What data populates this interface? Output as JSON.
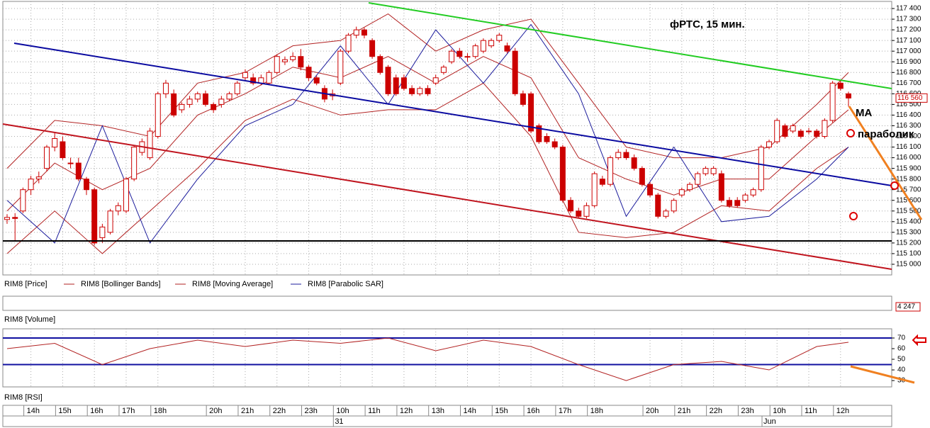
{
  "chart_data": {
    "type": "candlestick",
    "title": "фРТС, 15 мин.",
    "annotations": [
      "MA",
      "параболик"
    ],
    "ylim": [
      114900,
      117480
    ],
    "yticks": [
      {
        "value": 115000,
        "label": "115 000"
      },
      {
        "value": 115100,
        "label": "115 100"
      },
      {
        "value": 115200,
        "label": "115 200"
      },
      {
        "value": 115300,
        "label": "115 300"
      },
      {
        "value": 115400,
        "label": "115 400"
      },
      {
        "value": 115500,
        "label": "115 500"
      },
      {
        "value": 115600,
        "label": "115 600"
      },
      {
        "value": 115700,
        "label": "115 700"
      },
      {
        "value": 115800,
        "label": "115 800"
      },
      {
        "value": 115900,
        "label": "115 900"
      },
      {
        "value": 116000,
        "label": "116 000"
      },
      {
        "value": 116100,
        "label": "116 100"
      },
      {
        "value": 116200,
        "label": "116 200"
      },
      {
        "value": 116300,
        "label": "116 300"
      },
      {
        "value": 116400,
        "label": "116 400"
      },
      {
        "value": 116500,
        "label": "116 500"
      },
      {
        "value": 116600,
        "label": "116 600"
      },
      {
        "value": 116700,
        "label": "116 700"
      },
      {
        "value": 116800,
        "label": "116 800"
      },
      {
        "value": 116900,
        "label": "116 900"
      },
      {
        "value": 117000,
        "label": "117 000"
      },
      {
        "value": 117100,
        "label": "117 100"
      },
      {
        "value": 117200,
        "label": "117 200"
      },
      {
        "value": 117300,
        "label": "117 300"
      },
      {
        "value": 117400,
        "label": "117 400"
      }
    ],
    "last_price": {
      "value": 116560,
      "label": "116 560"
    },
    "grid": true,
    "price": {
      "name": "RIM8 [Price]",
      "color": "#cc0000",
      "ohlc": [
        [
          115420,
          115470,
          115380,
          115440
        ],
        [
          115440,
          115480,
          115220,
          115430
        ],
        [
          115500,
          115720,
          115480,
          115700
        ],
        [
          115700,
          115830,
          115650,
          115800
        ],
        [
          115800,
          115870,
          115760,
          115820
        ],
        [
          115900,
          116120,
          115870,
          116100
        ],
        [
          116100,
          116230,
          116060,
          116180
        ],
        [
          116150,
          116200,
          115980,
          116000
        ],
        [
          115950,
          116000,
          115900,
          115950
        ],
        [
          115950,
          116000,
          115780,
          115800
        ],
        [
          115800,
          115820,
          115650,
          115700
        ],
        [
          115700,
          115720,
          115180,
          115200
        ],
        [
          115250,
          115380,
          115200,
          115350
        ],
        [
          115300,
          115520,
          115280,
          115500
        ],
        [
          115500,
          115580,
          115460,
          115550
        ],
        [
          115500,
          115820,
          115480,
          115800
        ],
        [
          115800,
          116120,
          115780,
          116100
        ],
        [
          116050,
          116180,
          116020,
          116150
        ],
        [
          116000,
          116280,
          115980,
          116250
        ],
        [
          116200,
          116620,
          116180,
          116600
        ],
        [
          116600,
          116730,
          116560,
          116700
        ],
        [
          116600,
          116640,
          116380,
          116400
        ],
        [
          116450,
          116520,
          116420,
          116500
        ],
        [
          116500,
          116580,
          116470,
          116550
        ],
        [
          116550,
          116620,
          116520,
          116600
        ],
        [
          116600,
          116630,
          116480,
          116500
        ],
        [
          116500,
          116520,
          116420,
          116450
        ],
        [
          116500,
          116580,
          116470,
          116550
        ],
        [
          116550,
          116620,
          116530,
          116600
        ],
        [
          116600,
          116720,
          116580,
          116700
        ],
        [
          116750,
          116830,
          116720,
          116800
        ],
        [
          116750,
          116790,
          116680,
          116700
        ],
        [
          116700,
          116780,
          116680,
          116750
        ],
        [
          116700,
          116820,
          116680,
          116800
        ],
        [
          116800,
          116970,
          116780,
          116950
        ],
        [
          116900,
          116950,
          116870,
          116920
        ],
        [
          116920,
          116990,
          116900,
          116950
        ],
        [
          116950,
          117020,
          116820,
          116850
        ],
        [
          116850,
          116870,
          116720,
          116750
        ],
        [
          116750,
          116770,
          116680,
          116700
        ],
        [
          116650,
          116680,
          116520,
          116550
        ],
        [
          116580,
          116640,
          116540,
          116600
        ],
        [
          116700,
          117020,
          116680,
          117000
        ],
        [
          117000,
          117170,
          116980,
          117150
        ],
        [
          117150,
          117230,
          117120,
          117200
        ],
        [
          117200,
          117220,
          117120,
          117150
        ],
        [
          117100,
          117120,
          116930,
          116950
        ],
        [
          116950,
          116970,
          116780,
          116800
        ],
        [
          116850,
          116870,
          116580,
          116600
        ],
        [
          116750,
          116780,
          116580,
          116600
        ],
        [
          116750,
          116780,
          116630,
          116650
        ],
        [
          116650,
          116680,
          116580,
          116600
        ],
        [
          116600,
          116670,
          116580,
          116650
        ],
        [
          116650,
          116680,
          116580,
          116600
        ],
        [
          116700,
          116780,
          116680,
          116750
        ],
        [
          116800,
          116870,
          116780,
          116850
        ],
        [
          116900,
          117020,
          116880,
          117000
        ],
        [
          117000,
          117030,
          116930,
          116950
        ],
        [
          116950,
          116980,
          116900,
          116950
        ],
        [
          116950,
          117070,
          116930,
          117050
        ],
        [
          117000,
          117120,
          116980,
          117100
        ],
        [
          117050,
          117120,
          117030,
          117100
        ],
        [
          117100,
          117170,
          117080,
          117150
        ],
        [
          117050,
          117080,
          116980,
          117000
        ],
        [
          117000,
          117030,
          116580,
          116600
        ],
        [
          116600,
          116630,
          116480,
          116500
        ],
        [
          116600,
          116620,
          116230,
          116250
        ],
        [
          116300,
          116320,
          116130,
          116150
        ],
        [
          116200,
          116230,
          116130,
          116150
        ],
        [
          116150,
          116180,
          116080,
          116100
        ],
        [
          116100,
          116120,
          115580,
          115600
        ],
        [
          115600,
          115630,
          115480,
          115500
        ],
        [
          115500,
          115530,
          115430,
          115450
        ],
        [
          115450,
          115580,
          115430,
          115550
        ],
        [
          115550,
          115870,
          115530,
          115850
        ],
        [
          115800,
          115830,
          115730,
          115750
        ],
        [
          115750,
          116020,
          115730,
          116000
        ],
        [
          116000,
          116080,
          115980,
          116050
        ],
        [
          116050,
          116080,
          115980,
          116000
        ],
        [
          116000,
          116030,
          115880,
          115900
        ],
        [
          115900,
          115920,
          115730,
          115750
        ],
        [
          115750,
          115770,
          115630,
          115650
        ],
        [
          115650,
          115670,
          115430,
          115450
        ],
        [
          115450,
          115520,
          115430,
          115500
        ],
        [
          115500,
          115620,
          115480,
          115600
        ],
        [
          115650,
          115720,
          115630,
          115700
        ],
        [
          115700,
          115770,
          115680,
          115750
        ],
        [
          115750,
          115870,
          115730,
          115850
        ],
        [
          115850,
          115920,
          115830,
          115900
        ],
        [
          115850,
          115920,
          115830,
          115900
        ],
        [
          115850,
          115880,
          115580,
          115600
        ],
        [
          115600,
          115630,
          115530,
          115550
        ],
        [
          115600,
          115630,
          115530,
          115550
        ],
        [
          115600,
          115670,
          115580,
          115650
        ],
        [
          115650,
          115720,
          115630,
          115700
        ],
        [
          115700,
          116120,
          115680,
          116100
        ],
        [
          116100,
          116170,
          116080,
          116150
        ],
        [
          116150,
          116370,
          116130,
          116350
        ],
        [
          116300,
          116320,
          116180,
          116200
        ],
        [
          116250,
          116320,
          116230,
          116300
        ],
        [
          116250,
          116270,
          116180,
          116200
        ],
        [
          116250,
          116280,
          116220,
          116250
        ],
        [
          116250,
          116270,
          116180,
          116200
        ],
        [
          116200,
          116370,
          116180,
          116350
        ],
        [
          116350,
          116720,
          116330,
          116700
        ],
        [
          116700,
          116730,
          116630,
          116650
        ],
        [
          116600,
          116620,
          116480,
          116560
        ]
      ]
    },
    "indicator_x": [
      0,
      6,
      12,
      18,
      24,
      30,
      36,
      42,
      48,
      54,
      60,
      66,
      72,
      78,
      84,
      90,
      96,
      102,
      106
    ],
    "bands": {
      "name": "RIM8 [Bollinger Bands]",
      "color": "#b22222",
      "upper": [
        115900,
        116350,
        116300,
        116200,
        116700,
        116800,
        117050,
        117100,
        117350,
        117000,
        117200,
        117300,
        116700,
        116100,
        116000,
        116000,
        116100,
        116500,
        116800
      ],
      "lower": [
        115100,
        115500,
        115100,
        115500,
        115900,
        116350,
        116550,
        116400,
        116450,
        116450,
        116700,
        116200,
        115300,
        115250,
        115300,
        115550,
        115500,
        115900,
        116100
      ]
    },
    "ma": {
      "name": "RIM8 [Moving Average]",
      "color": "#b22222",
      "values": [
        115500,
        115950,
        115700,
        115900,
        116400,
        116600,
        116850,
        116750,
        116950,
        116700,
        116950,
        116750,
        116000,
        115800,
        115650,
        115800,
        115800,
        116200,
        116450
      ]
    },
    "sar": {
      "name": "RIM8 [Parabolic SAR]",
      "color": "#1c1c9c",
      "values": [
        115600,
        115200,
        116300,
        115200,
        115800,
        116300,
        116500,
        117050,
        116500,
        117200,
        116700,
        117250,
        116600,
        115450,
        116100,
        115400,
        115450,
        115800,
        116100
      ]
    },
    "volume": {
      "name": "RIM8 [Volume]",
      "last": {
        "value": 4247,
        "label": "4 247"
      }
    },
    "rsi": {
      "name": "RIM8 [RSI]",
      "ylim": [
        24.7,
        80
      ],
      "yticks": [
        70,
        60,
        50,
        40,
        30
      ],
      "levels": [
        70,
        45
      ],
      "values": [
        60,
        65,
        45,
        60,
        68,
        62,
        68,
        65,
        70,
        58,
        68,
        62,
        45,
        30,
        45,
        48,
        40,
        62,
        66
      ]
    },
    "categories": [
      null,
      null,
      null,
      "14h",
      null,
      null,
      null,
      "15h",
      null,
      null,
      null,
      "16h",
      null,
      null,
      null,
      "17h",
      null,
      null,
      null,
      "18h",
      null,
      null,
      null,
      null,
      null,
      null,
      "20h",
      null,
      null,
      null,
      "21h",
      null,
      null,
      null,
      "22h",
      null,
      null,
      null,
      "23h",
      null,
      null,
      null,
      "10h",
      null,
      null,
      null,
      "11h",
      null,
      null,
      null,
      "12h",
      null,
      null,
      null,
      "13h",
      null,
      null,
      null,
      "14h",
      null,
      null,
      null,
      "15h",
      null,
      null,
      null,
      "16h",
      null,
      null,
      null,
      "17h",
      null,
      null,
      null,
      "18h",
      null,
      null,
      null,
      null,
      null,
      null,
      "20h",
      null,
      null,
      null,
      "21h",
      null,
      null,
      null,
      "22h",
      null,
      null,
      null,
      "23h",
      null,
      null,
      null,
      "10h",
      null,
      null,
      null,
      "11h",
      null,
      null,
      null,
      "12h",
      null,
      null
    ],
    "dates": [
      null,
      null,
      null,
      null,
      null,
      null,
      null,
      null,
      null,
      null,
      null,
      null,
      null,
      null,
      null,
      null,
      null,
      null,
      null,
      null,
      null,
      null,
      null,
      null,
      null,
      null,
      null,
      null,
      null,
      null,
      null,
      null,
      null,
      null,
      null,
      null,
      null,
      null,
      null,
      null,
      null,
      null,
      "31",
      null,
      null,
      null,
      null,
      null,
      null,
      null,
      null,
      null,
      null,
      null,
      null,
      null,
      null,
      null,
      null,
      null,
      null,
      null,
      null,
      null,
      null,
      null,
      null,
      null,
      null,
      null,
      null,
      null,
      null,
      null,
      null,
      null,
      null,
      null,
      null,
      null,
      null,
      null,
      null,
      null,
      null,
      null,
      null,
      null,
      null,
      null,
      null,
      null,
      null,
      null,
      null,
      null,
      "Jun",
      null,
      null,
      null,
      null,
      null,
      null,
      null,
      null,
      null,
      null
    ]
  }
}
